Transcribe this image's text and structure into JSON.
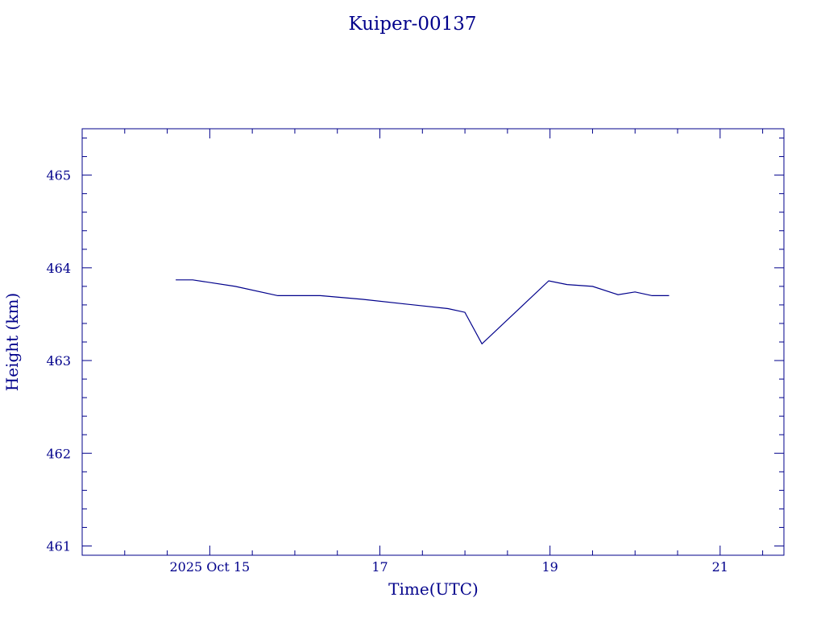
{
  "chart_data": {
    "type": "line",
    "title": "Kuiper-00137",
    "xlabel": "Time(UTC)",
    "ylabel": "Height (km)",
    "color": "#00008b",
    "xlim": [
      "2025-10-13T12:00",
      "2025-10-21T18:00"
    ],
    "ylim": [
      460.9,
      465.5
    ],
    "x_ticks": [
      {
        "label": "2025 Oct 15",
        "x": "2025-10-15T00:00"
      },
      {
        "label": "17",
        "x": "2025-10-17T00:00"
      },
      {
        "label": "19",
        "x": "2025-10-19T00:00"
      },
      {
        "label": "21",
        "x": "2025-10-21T00:00"
      }
    ],
    "y_ticks": [
      461,
      462,
      463,
      464,
      465
    ],
    "series": [
      {
        "points": [
          {
            "x": "2025-10-14T14:24",
            "y": 463.87
          },
          {
            "x": "2025-10-14T19:12",
            "y": 463.87
          },
          {
            "x": "2025-10-15T07:12",
            "y": 463.8
          },
          {
            "x": "2025-10-15T19:12",
            "y": 463.7
          },
          {
            "x": "2025-10-16T07:12",
            "y": 463.7
          },
          {
            "x": "2025-10-16T19:12",
            "y": 463.66
          },
          {
            "x": "2025-10-17T07:12",
            "y": 463.61
          },
          {
            "x": "2025-10-17T19:12",
            "y": 463.56
          },
          {
            "x": "2025-10-17T23:59",
            "y": 463.52
          },
          {
            "x": "2025-10-18T04:48",
            "y": 463.18
          },
          {
            "x": "2025-10-18T23:38",
            "y": 463.86
          },
          {
            "x": "2025-10-19T04:48",
            "y": 463.82
          },
          {
            "x": "2025-10-19T12:00",
            "y": 463.8
          },
          {
            "x": "2025-10-19T19:12",
            "y": 463.71
          },
          {
            "x": "2025-10-19T23:59",
            "y": 463.74
          },
          {
            "x": "2025-10-20T04:48",
            "y": 463.7
          },
          {
            "x": "2025-10-20T09:36",
            "y": 463.7
          }
        ]
      }
    ],
    "grid": false,
    "legend": "none"
  }
}
